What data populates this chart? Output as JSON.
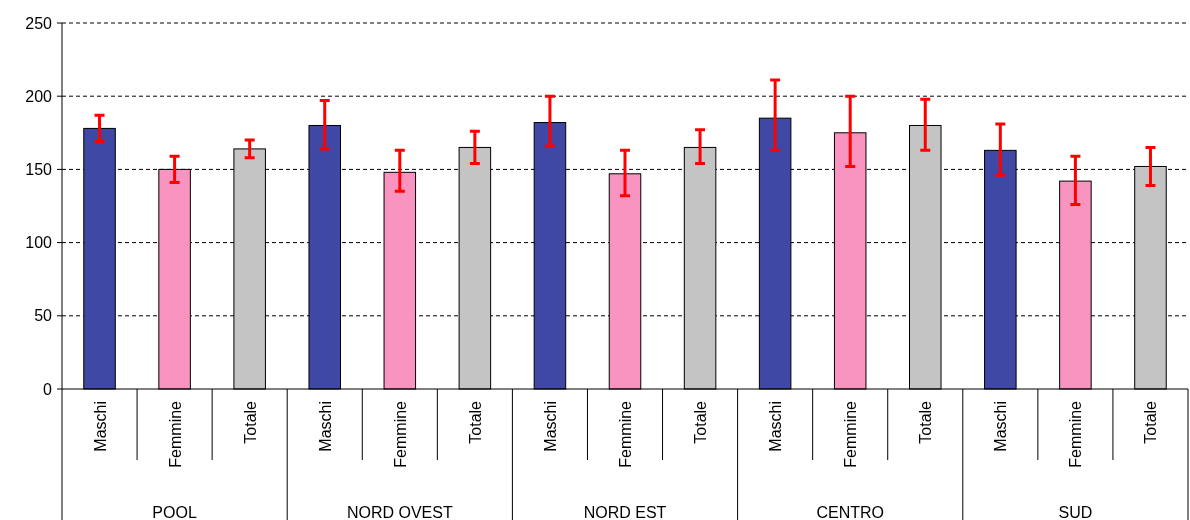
{
  "chart_data": {
    "type": "bar",
    "categories": [
      "POOL",
      "NORD OVEST",
      "NORD EST",
      "CENTRO",
      "SUD"
    ],
    "series": [
      {
        "name": "Maschi",
        "color": "#3f48a4",
        "values": [
          178,
          180,
          182,
          185,
          163
        ],
        "errors": [
          [
            169,
            187
          ],
          [
            164,
            197
          ],
          [
            166,
            200
          ],
          [
            163,
            211
          ],
          [
            146,
            181
          ]
        ]
      },
      {
        "name": "Femmine",
        "color": "#f993c0",
        "values": [
          150,
          148,
          147,
          175,
          142
        ],
        "errors": [
          [
            141,
            159
          ],
          [
            135,
            163
          ],
          [
            132,
            163
          ],
          [
            152,
            200
          ],
          [
            126,
            159
          ]
        ]
      },
      {
        "name": "Totale",
        "color": "#c4c4c4",
        "values": [
          164,
          165,
          165,
          180,
          152
        ],
        "errors": [
          [
            158,
            170
          ],
          [
            154,
            176
          ],
          [
            154,
            177
          ],
          [
            163,
            198
          ],
          [
            139,
            165
          ]
        ]
      }
    ],
    "ylim": [
      0,
      250
    ],
    "yticks": [
      0,
      50,
      100,
      150,
      200,
      250
    ],
    "grid": "y"
  }
}
